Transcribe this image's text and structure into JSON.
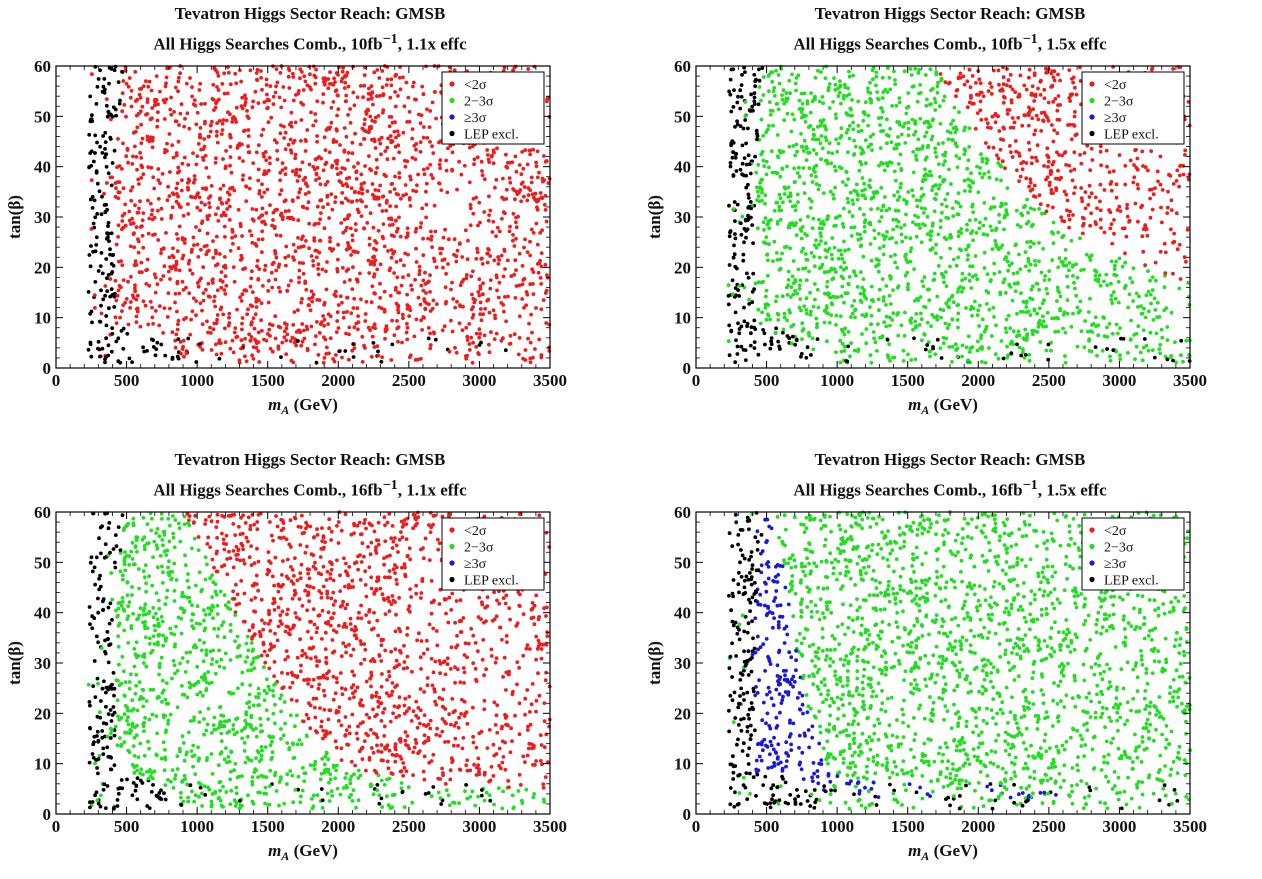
{
  "chart_data": [
    {
      "type": "scatter",
      "title": "Tevatron Higgs Sector Reach: GMSB",
      "subtitle_pre": "All Higgs Searches Comb., 10fb",
      "subtitle_sup": "−1",
      "subtitle_post": ", 1.1x effc",
      "xlabel_var": "m",
      "xlabel_sub": "A",
      "xlabel_unit": " (GeV)",
      "ylabel": "tan(β)",
      "xlim": [
        0,
        3500
      ],
      "ylim": [
        0,
        60
      ],
      "xticks": [
        "0",
        "500",
        "1000",
        "1500",
        "2000",
        "2500",
        "3000",
        "3500"
      ],
      "yticks": [
        "0",
        "10",
        "20",
        "30",
        "40",
        "50",
        "60"
      ],
      "legend_position": "top-right",
      "legend": [
        {
          "label": "<2σ",
          "color": "#ee1c1c"
        },
        {
          "label": "2−3σ",
          "color": "#22dd22"
        },
        {
          "label": "≥3σ",
          "color": "#1a1ad6"
        },
        {
          "label": "LEP excl.",
          "color": "#000000"
        }
      ],
      "regions": [
        {
          "series": "LEP excl.",
          "color": "#000000",
          "kind": "lep"
        },
        {
          "series": "<2σ",
          "color": "#ee1c1c",
          "kind": "fill",
          "boundary": [
            [
              520,
              60
            ],
            [
              600,
              20
            ],
            [
              700,
              8
            ],
            [
              1000,
              5
            ],
            [
              3500,
              5
            ]
          ]
        }
      ],
      "seed": 11
    },
    {
      "type": "scatter",
      "title": "Tevatron Higgs Sector Reach: GMSB",
      "subtitle_pre": "All Higgs Searches Comb., 10fb",
      "subtitle_sup": "−1",
      "subtitle_post": ", 1.5x effc",
      "xlabel_var": "m",
      "xlabel_sub": "A",
      "xlabel_unit": " (GeV)",
      "ylabel": "tan(β)",
      "xlim": [
        0,
        3500
      ],
      "ylim": [
        0,
        60
      ],
      "xticks": [
        "0",
        "500",
        "1000",
        "1500",
        "2000",
        "2500",
        "3000",
        "3500"
      ],
      "yticks": [
        "0",
        "10",
        "20",
        "30",
        "40",
        "50",
        "60"
      ],
      "legend_position": "top-right",
      "legend": [
        {
          "label": "<2σ",
          "color": "#ee1c1c"
        },
        {
          "label": "2−3σ",
          "color": "#22dd22"
        },
        {
          "label": "≥3σ",
          "color": "#1a1ad6"
        },
        {
          "label": "LEP excl.",
          "color": "#000000"
        }
      ],
      "regions": [
        {
          "series": "LEP excl.",
          "color": "#000000",
          "kind": "lep"
        },
        {
          "series": "2−3σ",
          "color": "#22dd22",
          "kind": "fill"
        },
        {
          "series": "<2σ",
          "color": "#ee1c1c",
          "kind": "upper_right",
          "boundary": [
            [
              1700,
              60
            ],
            [
              2000,
              45
            ],
            [
              2500,
              30
            ],
            [
              3000,
              22
            ],
            [
              3500,
              17
            ]
          ]
        }
      ],
      "seed": 23
    },
    {
      "type": "scatter",
      "title": "Tevatron Higgs Sector Reach: GMSB",
      "subtitle_pre": "All Higgs Searches Comb., 16fb",
      "subtitle_sup": "−1",
      "subtitle_post": ", 1.1x effc",
      "xlabel_var": "m",
      "xlabel_sub": "A",
      "xlabel_unit": " (GeV)",
      "ylabel": "tan(β)",
      "xlim": [
        0,
        3500
      ],
      "ylim": [
        0,
        60
      ],
      "xticks": [
        "0",
        "500",
        "1000",
        "1500",
        "2000",
        "2500",
        "3000",
        "3500"
      ],
      "yticks": [
        "0",
        "10",
        "20",
        "30",
        "40",
        "50",
        "60"
      ],
      "legend_position": "top-right",
      "legend": [
        {
          "label": "<2σ",
          "color": "#ee1c1c"
        },
        {
          "label": "2−3σ",
          "color": "#22dd22"
        },
        {
          "label": "≥3σ",
          "color": "#1a1ad6"
        },
        {
          "label": "LEP excl.",
          "color": "#000000"
        }
      ],
      "regions": [
        {
          "series": "LEP excl.",
          "color": "#000000",
          "kind": "lep"
        },
        {
          "series": "2−3σ",
          "color": "#22dd22",
          "kind": "fill"
        },
        {
          "series": "<2σ",
          "color": "#ee1c1c",
          "kind": "upper_right",
          "boundary": [
            [
              900,
              60
            ],
            [
              1300,
              38
            ],
            [
              1700,
              20
            ],
            [
              2000,
              10
            ],
            [
              2500,
              6
            ],
            [
              3500,
              5
            ]
          ]
        }
      ],
      "seed": 37
    },
    {
      "type": "scatter",
      "title": "Tevatron Higgs Sector Reach: GMSB",
      "subtitle_pre": "All Higgs Searches Comb., 16fb",
      "subtitle_sup": "−1",
      "subtitle_post": ", 1.5x effc",
      "xlabel_var": "m",
      "xlabel_sub": "A",
      "xlabel_unit": " (GeV)",
      "ylabel": "tan(β)",
      "xlim": [
        0,
        3500
      ],
      "ylim": [
        0,
        60
      ],
      "xticks": [
        "0",
        "500",
        "1000",
        "1500",
        "2000",
        "2500",
        "3000",
        "3500"
      ],
      "yticks": [
        "0",
        "10",
        "20",
        "30",
        "40",
        "50",
        "60"
      ],
      "legend_position": "top-right",
      "legend": [
        {
          "label": "<2σ",
          "color": "#ee1c1c"
        },
        {
          "label": "2−3σ",
          "color": "#22dd22"
        },
        {
          "label": "≥3σ",
          "color": "#1a1ad6"
        },
        {
          "label": "LEP excl.",
          "color": "#000000"
        }
      ],
      "regions": [
        {
          "series": "LEP excl.",
          "color": "#000000",
          "kind": "lep"
        },
        {
          "series": "2−3σ",
          "color": "#22dd22",
          "kind": "fill"
        },
        {
          "series": "≥3σ",
          "color": "#1a1ad6",
          "kind": "band",
          "boundary": [
            [
              550,
              60
            ],
            [
              700,
              35
            ],
            [
              800,
              20
            ],
            [
              950,
              8
            ],
            [
              1500,
              5
            ],
            [
              2500,
              4
            ],
            [
              3500,
              3
            ]
          ]
        }
      ],
      "seed": 53
    }
  ]
}
